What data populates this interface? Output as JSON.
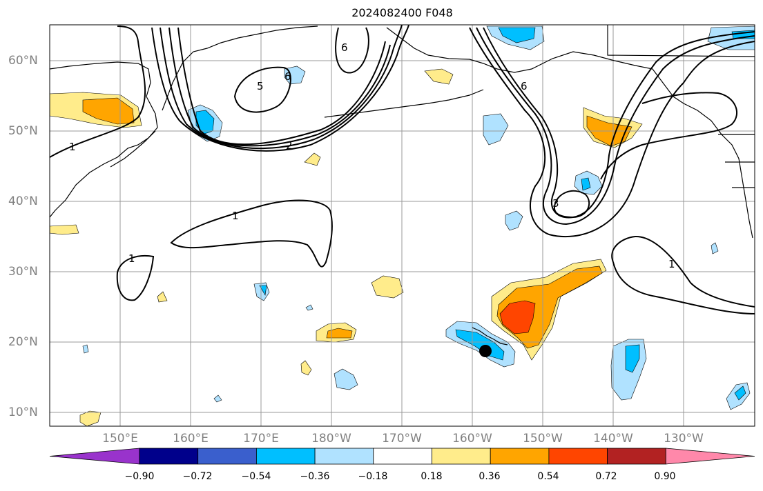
{
  "title": "2024082400 F048",
  "lat_labels": [
    "60°N",
    "50°N",
    "40°N",
    "30°N",
    "20°N",
    "10°N"
  ],
  "lon_labels": [
    "150°E",
    "160°E",
    "170°E",
    "180°W",
    "170°W",
    "160°W",
    "150°W",
    "140°W",
    "130°W"
  ],
  "contour_labels": [
    "1",
    "1",
    "1",
    "1",
    "2",
    "5",
    "6",
    "6",
    "6",
    "3"
  ],
  "colorbar": {
    "tick_labels": [
      "−0.90",
      "−0.72",
      "−0.54",
      "−0.36",
      "−0.18",
      "0.18",
      "0.36",
      "0.54",
      "0.72",
      "0.90"
    ],
    "colors": [
      "#9933cc",
      "#00008b",
      "#3a5fcd",
      "#00bfff",
      "#b0e2ff",
      "#ffffff",
      "#ffec8b",
      "#ffa500",
      "#ff4500",
      "#b22222",
      "#ff88aa"
    ]
  },
  "fill_colors": {
    "light_blue": "#b0e2ff",
    "blue": "#00bfff",
    "yellow": "#ffec8b",
    "orange": "#ffa500",
    "red_orange": "#ff4500"
  },
  "marker": "storm-position"
}
